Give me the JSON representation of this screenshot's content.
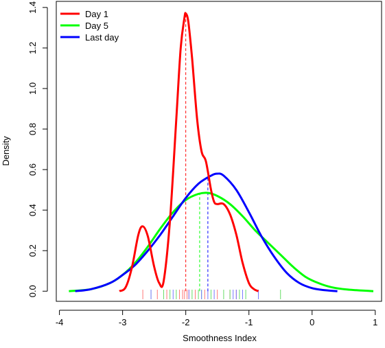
{
  "chart_data": {
    "type": "line",
    "title": "",
    "xlabel": "Smoothness Index",
    "ylabel": "Density",
    "xlim": [
      -4.05,
      1.1
    ],
    "ylim": [
      -0.05,
      1.43
    ],
    "xticks": [
      -4,
      -3,
      -2,
      -1,
      0,
      1
    ],
    "yticks": [
      0.0,
      0.2,
      0.4,
      0.6,
      0.8,
      1.0,
      1.2,
      1.4
    ],
    "xtick_labels": [
      "-4",
      "-3",
      "-2",
      "-1",
      "0",
      "1"
    ],
    "ytick_labels": [
      "0.0",
      "0.2",
      "0.4",
      "0.6",
      "0.8",
      "1.0",
      "1.2",
      "1.4"
    ],
    "legend_position": "top-left",
    "grid": false,
    "series": [
      {
        "name": "Day 1",
        "color": "#ff0000",
        "x": [
          -3.05,
          -2.95,
          -2.85,
          -2.75,
          -2.68,
          -2.6,
          -2.5,
          -2.42,
          -2.35,
          -2.25,
          -2.15,
          -2.08,
          -2.02,
          -2.0,
          -1.96,
          -1.9,
          -1.82,
          -1.75,
          -1.68,
          -1.6,
          -1.55,
          -1.5,
          -1.4,
          -1.3,
          -1.2,
          -1.1,
          -1.0,
          -0.92,
          -0.85
        ],
        "y": [
          0.0,
          0.02,
          0.12,
          0.28,
          0.32,
          0.27,
          0.12,
          0.04,
          0.05,
          0.35,
          0.85,
          1.2,
          1.35,
          1.37,
          1.33,
          1.15,
          0.85,
          0.69,
          0.64,
          0.5,
          0.44,
          0.43,
          0.43,
          0.38,
          0.28,
          0.14,
          0.04,
          0.01,
          0.0
        ]
      },
      {
        "name": "Day 5",
        "color": "#00ff00",
        "x": [
          -3.85,
          -3.5,
          -3.2,
          -3.0,
          -2.8,
          -2.6,
          -2.4,
          -2.2,
          -2.0,
          -1.8,
          -1.65,
          -1.5,
          -1.3,
          -1.1,
          -0.9,
          -0.7,
          -0.5,
          -0.3,
          -0.1,
          0.1,
          0.3,
          0.5,
          0.7,
          0.97
        ],
        "y": [
          0.0,
          0.01,
          0.04,
          0.08,
          0.14,
          0.22,
          0.31,
          0.39,
          0.45,
          0.48,
          0.485,
          0.47,
          0.43,
          0.37,
          0.3,
          0.24,
          0.18,
          0.12,
          0.07,
          0.04,
          0.02,
          0.01,
          0.005,
          0.0
        ]
      },
      {
        "name": "Last day",
        "color": "#0000ff",
        "x": [
          -3.75,
          -3.5,
          -3.2,
          -3.0,
          -2.8,
          -2.6,
          -2.4,
          -2.2,
          -2.0,
          -1.8,
          -1.6,
          -1.5,
          -1.4,
          -1.2,
          -1.0,
          -0.8,
          -0.6,
          -0.4,
          -0.2,
          0.0,
          0.2,
          0.4
        ],
        "y": [
          0.0,
          0.01,
          0.04,
          0.08,
          0.13,
          0.2,
          0.28,
          0.37,
          0.46,
          0.53,
          0.57,
          0.58,
          0.57,
          0.5,
          0.39,
          0.27,
          0.17,
          0.09,
          0.04,
          0.015,
          0.005,
          0.0
        ]
      }
    ],
    "vlines": [
      {
        "series": "Day 1",
        "x": -2.0,
        "y": 1.37,
        "color": "#ff0000"
      },
      {
        "series": "Day 5",
        "x": -1.78,
        "y": 0.48,
        "color": "#00ff00"
      },
      {
        "series": "Last day",
        "x": -1.65,
        "y": 0.57,
        "color": "#0000ff"
      }
    ],
    "rug": [
      {
        "series": "Day 1",
        "color": "#ff7777",
        "x": [
          -2.68,
          -2.45,
          -2.3,
          -2.1,
          -2.05,
          -2.02,
          -1.98,
          -1.95,
          -1.85,
          -1.7,
          -1.5,
          -1.3,
          -1.2
        ]
      },
      {
        "series": "Day 5",
        "color": "#66dd66",
        "x": [
          -2.55,
          -2.35,
          -2.25,
          -2.15,
          -1.9,
          -1.8,
          -1.75,
          -1.6,
          -1.4,
          -1.3,
          -1.15,
          -1.05,
          -0.5
        ]
      },
      {
        "series": "Last day",
        "color": "#7777ff",
        "x": [
          -2.55,
          -2.2,
          -1.95,
          -1.75,
          -1.65,
          -1.55,
          -1.25,
          -1.2,
          -1.1,
          -0.85
        ]
      }
    ]
  }
}
